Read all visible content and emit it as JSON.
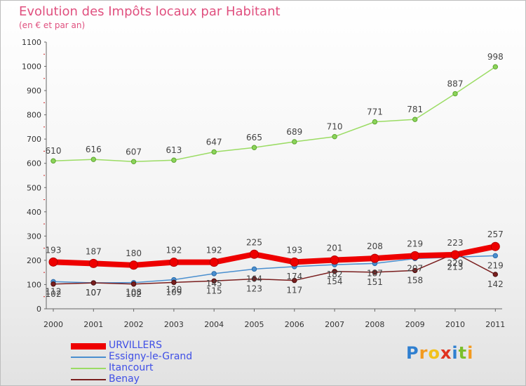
{
  "chart_data": {
    "type": "line",
    "title": "Evolution des Impôts locaux par Habitant",
    "subtitle": "(en € et par an)",
    "xlabel": "",
    "ylabel": "",
    "ylim": [
      0,
      1100
    ],
    "yticks": [
      "0",
      "100",
      "200",
      "300",
      "400",
      "500",
      "600",
      "700",
      "800",
      "900",
      "1000",
      "1100"
    ],
    "categories": [
      "2000",
      "2001",
      "2002",
      "2003",
      "2004",
      "2005",
      "2006",
      "2007",
      "2008",
      "2009",
      "2010",
      "2011"
    ],
    "series": [
      {
        "name": "URVILLERS",
        "color": "#ee0000",
        "values": [
          193,
          187,
          180,
          192,
          192,
          225,
          193,
          201,
          208,
          219,
          223,
          257
        ]
      },
      {
        "name": "Essigny-le-Grand",
        "color": "#4a8fcf",
        "values": [
          112,
          107,
          108,
          120,
          145,
          164,
          174,
          182,
          187,
          207,
          213,
          219
        ]
      },
      {
        "name": "Itancourt",
        "color": "#9bdc64",
        "values": [
          610,
          616,
          607,
          613,
          647,
          665,
          689,
          710,
          771,
          781,
          887,
          998
        ]
      },
      {
        "name": "Benay",
        "color": "#7a1e1e",
        "values": [
          102,
          107,
          102,
          109,
          115,
          123,
          117,
          154,
          151,
          158,
          229,
          142
        ]
      }
    ],
    "legend": "bottom-left",
    "grid": false
  },
  "logo": {
    "text": "Proxiti",
    "letters": [
      "P",
      "r",
      "o",
      "x",
      "i",
      "t",
      "i"
    ]
  }
}
